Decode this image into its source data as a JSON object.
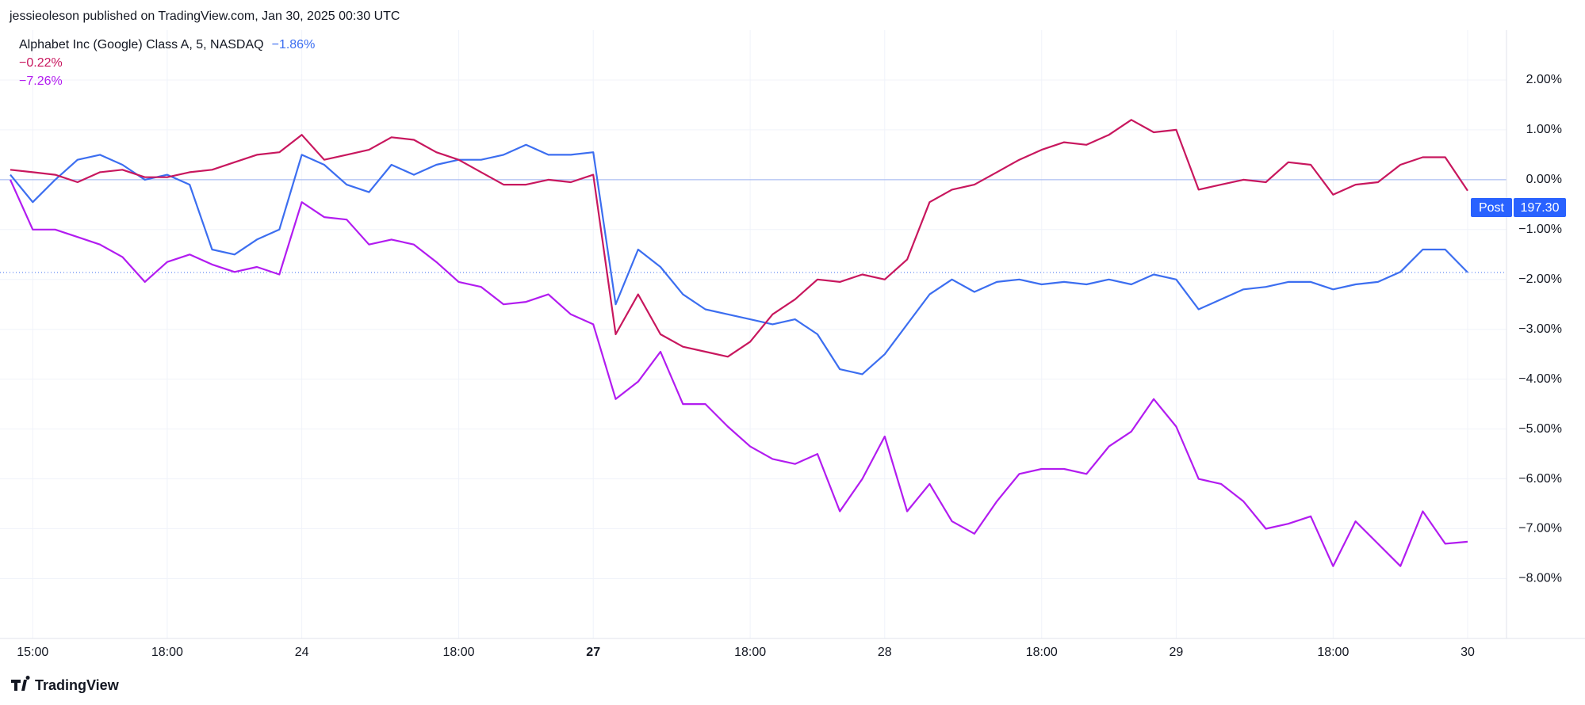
{
  "header": {
    "text": "jessieoleson published on TradingView.com, Jan 30, 2025 00:30 UTC"
  },
  "footer": {
    "brand": "TradingView"
  },
  "price_tag": {
    "label": "Post",
    "price": "197.30"
  },
  "chart_data": {
    "type": "line",
    "categories": [
      null,
      "15:00",
      null,
      null,
      null,
      null,
      null,
      "18:00",
      null,
      null,
      null,
      null,
      null,
      "24",
      null,
      null,
      null,
      null,
      null,
      null,
      "18:00",
      null,
      null,
      null,
      null,
      null,
      "27",
      null,
      null,
      null,
      null,
      null,
      null,
      "18:00",
      null,
      null,
      null,
      null,
      null,
      "28",
      null,
      null,
      null,
      null,
      null,
      null,
      "18:00",
      null,
      null,
      null,
      null,
      null,
      "29",
      null,
      null,
      null,
      null,
      null,
      null,
      "18:00",
      null,
      null,
      null,
      null,
      null,
      "30"
    ],
    "series": [
      {
        "name": "Alphabet Inc (Google) Class A, 5, NASDAQ",
        "color": "#3c6ef0",
        "last_value_label": "−1.86%",
        "values": [
          0.1,
          -0.45,
          0,
          0.4,
          0.5,
          0.3,
          0,
          0.1,
          -0.1,
          -1.4,
          -1.5,
          -1.2,
          -1.0,
          0.5,
          0.3,
          -0.1,
          -0.25,
          0.3,
          0.1,
          0.3,
          0.4,
          0.4,
          0.5,
          0.7,
          0.5,
          0.5,
          0.55,
          -2.5,
          -1.4,
          -1.75,
          -2.3,
          -2.6,
          -2.7,
          -2.8,
          -2.9,
          -2.8,
          -3.1,
          -3.8,
          -3.9,
          -3.5,
          -2.9,
          -2.3,
          -2.0,
          -2.25,
          -2.05,
          -2.0,
          -2.1,
          -2.05,
          -2.1,
          -2.0,
          -2.1,
          -1.9,
          -2.0,
          -2.6,
          -2.4,
          -2.2,
          -2.15,
          -2.05,
          -2.05,
          -2.2,
          -2.1,
          -2.05,
          -1.85,
          -1.4,
          -1.4,
          -1.86
        ]
      },
      {
        "color": "#c8175e",
        "last_value_label": "−0.22%",
        "values": [
          0.2,
          0.15,
          0.1,
          -0.05,
          0.15,
          0.2,
          0.05,
          0.05,
          0.15,
          0.2,
          0.35,
          0.5,
          0.55,
          0.9,
          0.4,
          0.5,
          0.6,
          0.85,
          0.8,
          0.55,
          0.4,
          0.15,
          -0.1,
          -0.1,
          0.0,
          -0.05,
          0.1,
          -3.1,
          -2.3,
          -3.1,
          -3.35,
          -3.45,
          -3.55,
          -3.25,
          -2.7,
          -2.4,
          -2.0,
          -2.05,
          -1.9,
          -2.0,
          -1.6,
          -0.45,
          -0.2,
          -0.1,
          0.15,
          0.4,
          0.6,
          0.75,
          0.7,
          0.9,
          1.2,
          0.95,
          1.0,
          -0.2,
          -0.1,
          0.0,
          -0.05,
          0.35,
          0.3,
          -0.3,
          -0.1,
          -0.05,
          0.3,
          0.45,
          0.45,
          -0.22
        ]
      },
      {
        "color": "#b21cf0",
        "last_value_label": "−7.26%",
        "values": [
          0,
          -1.0,
          -1.0,
          -1.15,
          -1.3,
          -1.55,
          -2.05,
          -1.65,
          -1.5,
          -1.7,
          -1.85,
          -1.75,
          -1.9,
          -0.45,
          -0.75,
          -0.8,
          -1.3,
          -1.2,
          -1.3,
          -1.65,
          -2.05,
          -2.15,
          -2.5,
          -2.45,
          -2.3,
          -2.7,
          -2.9,
          -4.4,
          -4.05,
          -3.45,
          -4.5,
          -4.5,
          -4.95,
          -5.35,
          -5.6,
          -5.7,
          -5.5,
          -6.65,
          -6.0,
          -5.15,
          -6.65,
          -6.1,
          -6.85,
          -7.1,
          -6.45,
          -5.9,
          -5.8,
          -5.8,
          -5.9,
          -5.35,
          -5.05,
          -4.4,
          -4.95,
          -6.0,
          -6.1,
          -6.45,
          -7.0,
          -6.9,
          -6.75,
          -7.75,
          -6.85,
          -7.3,
          -7.75,
          -6.65,
          -7.3,
          -7.26
        ]
      }
    ],
    "ylim": [
      -9.2,
      3.0
    ],
    "yticks": [
      {
        "value": 2,
        "label": "2.00%"
      },
      {
        "value": 1,
        "label": "1.00%"
      },
      {
        "value": 0,
        "label": "0.00%"
      },
      {
        "value": -1,
        "label": "−1.00%"
      },
      {
        "value": -2,
        "label": "−2.00%"
      },
      {
        "value": -3,
        "label": "−3.00%"
      },
      {
        "value": -4,
        "label": "−4.00%"
      },
      {
        "value": -5,
        "label": "−5.00%"
      },
      {
        "value": -6,
        "label": "−6.00%"
      },
      {
        "value": -7,
        "label": "−7.00%"
      },
      {
        "value": -8,
        "label": "−8.00%"
      }
    ],
    "grid": true
  }
}
